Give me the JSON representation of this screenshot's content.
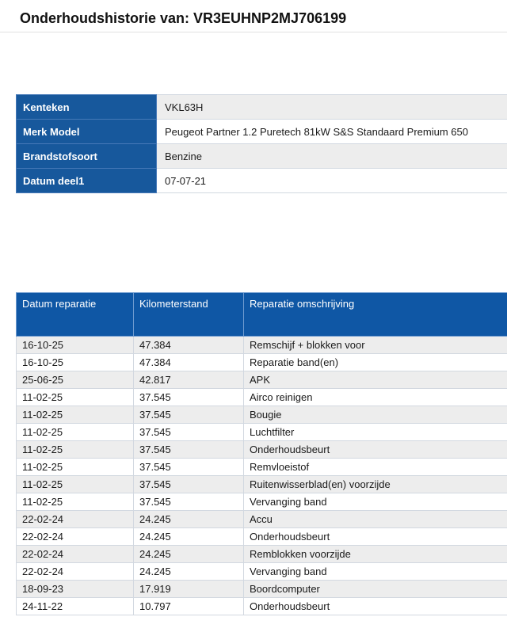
{
  "page": {
    "title": "Onderhoudshistorie van: VR3EUHNP2MJ706199"
  },
  "vehicle_info": {
    "rows": [
      {
        "label": "Kenteken",
        "value": "VKL63H"
      },
      {
        "label": "Merk Model",
        "value": "Peugeot Partner 1.2 Puretech 81kW S&S Standaard Premium 650"
      },
      {
        "label": "Brandstofsoort",
        "value": "Benzine"
      },
      {
        "label": "Datum deel1",
        "value": "07-07-21"
      }
    ]
  },
  "maintenance_table": {
    "columns": [
      "Datum reparatie",
      "Kilometerstand",
      "Reparatie omschrijving"
    ],
    "rows": [
      [
        "16-10-25",
        "47.384",
        "Remschijf + blokken voor"
      ],
      [
        "16-10-25",
        "47.384",
        "Reparatie band(en)"
      ],
      [
        "25-06-25",
        "42.817",
        "APK"
      ],
      [
        "11-02-25",
        "37.545",
        "Airco reinigen"
      ],
      [
        "11-02-25",
        "37.545",
        "Bougie"
      ],
      [
        "11-02-25",
        "37.545",
        "Luchtfilter"
      ],
      [
        "11-02-25",
        "37.545",
        "Onderhoudsbeurt"
      ],
      [
        "11-02-25",
        "37.545",
        "Remvloeistof"
      ],
      [
        "11-02-25",
        "37.545",
        "Ruitenwisserblad(en) voorzijde"
      ],
      [
        "11-02-25",
        "37.545",
        "Vervanging band"
      ],
      [
        "22-02-24",
        "24.245",
        "Accu"
      ],
      [
        "22-02-24",
        "24.245",
        "Onderhoudsbeurt"
      ],
      [
        "22-02-24",
        "24.245",
        "Remblokken voorzijde"
      ],
      [
        "22-02-24",
        "24.245",
        "Vervanging band"
      ],
      [
        "18-09-23",
        "17.919",
        "Boordcomputer"
      ],
      [
        "24-11-22",
        "10.797",
        "Onderhoudsbeurt"
      ]
    ]
  },
  "colors": {
    "header_blue": "#0f57a5",
    "label_blue": "#17589c",
    "header_border_blue": "#6f9bd0",
    "table_border_blue": "#4679b8",
    "table_border_light": "#d2d8e0",
    "row_alt": "#ededed",
    "title_underline": "#e0e0e0"
  }
}
